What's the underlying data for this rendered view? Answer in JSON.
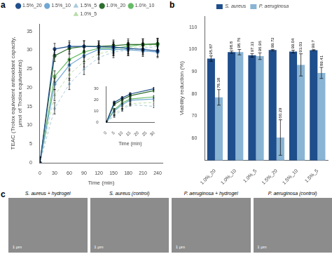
{
  "chart_data": [
    {
      "type": "line",
      "annotations": [
        "a"
      ],
      "x": [
        0,
        30,
        60,
        90,
        120,
        150,
        180,
        210,
        240
      ],
      "xlabel": "Time (min)",
      "ylabel": "TEAC (Trolox equivalent antioxidant capacity,\nμmol of Trolox equivalents)",
      "xlim": [
        0,
        250
      ],
      "xticks": [
        0,
        30,
        60,
        90,
        120,
        150,
        180,
        210,
        240
      ],
      "ylim": [
        0,
        37
      ],
      "yticks": [
        0,
        5,
        10,
        15,
        20,
        25,
        30,
        35
      ],
      "grid": false,
      "legend": "top",
      "series": [
        {
          "name": "1.5%_20",
          "color": "#1f4e8c",
          "marker": "circle",
          "line_style": "solid",
          "values": [
            0,
            30.3,
            31.0,
            31.0,
            30.9,
            30.8,
            30.5,
            30.2,
            29.8
          ],
          "errors": [
            1.5,
            1.5,
            1.5,
            1.5,
            1.5,
            1.5,
            1.5,
            1.5,
            1.5
          ]
        },
        {
          "name": "1.5%_10",
          "color": "#6fa8d4",
          "marker": "circle",
          "line_style": "solid",
          "values": [
            0,
            21.0,
            26.0,
            28.5,
            30.2,
            30.2,
            30.1,
            29.8,
            29.5
          ],
          "errors": [
            1.5,
            1.5,
            1.5,
            1.5,
            1.5,
            1.5,
            1.5,
            1.5,
            1.5
          ]
        },
        {
          "name": "1.5%_5",
          "color": "#aaccdd",
          "marker": "triangle",
          "line_style": "dashed",
          "values": [
            0,
            14.5,
            21.0,
            25.0,
            28.0,
            29.5,
            30.0,
            30.5,
            31.0
          ],
          "errors": [
            1.5,
            1.5,
            1.5,
            1.5,
            1.5,
            1.5,
            1.5,
            1.5,
            1.5
          ]
        },
        {
          "name": "1.0%_20",
          "color": "#2d6e2d",
          "marker": "circle",
          "line_style": "solid",
          "values": [
            0,
            28.5,
            30.5,
            31.0,
            31.0,
            31.2,
            31.5,
            31.5,
            31.7
          ],
          "errors": [
            1.5,
            1.5,
            1.5,
            1.5,
            1.5,
            1.5,
            1.5,
            1.5,
            1.5
          ]
        },
        {
          "name": "1.0%_10",
          "color": "#66bb66",
          "marker": "circle",
          "line_style": "solid",
          "values": [
            0,
            23.0,
            27.5,
            29.5,
            30.5,
            30.5,
            31.0,
            31.5,
            31.5
          ],
          "errors": [
            1.5,
            1.5,
            1.5,
            1.5,
            1.5,
            1.5,
            1.5,
            1.5,
            1.5
          ]
        },
        {
          "name": "1.0%_5",
          "color": "#bbddaa",
          "marker": "triangle",
          "line_style": "dashed",
          "values": [
            0,
            18.0,
            23.5,
            27.0,
            29.0,
            30.0,
            30.5,
            31.0,
            31.5
          ],
          "errors": [
            1.5,
            1.5,
            1.5,
            1.5,
            1.5,
            1.5,
            1.5,
            1.5,
            1.5
          ]
        }
      ],
      "inset": {
        "type": "line",
        "x": [
          0,
          5,
          10,
          15,
          30
        ],
        "xlabel": "Time (min)",
        "xlim": [
          0,
          30
        ],
        "xticks": [
          0,
          5,
          10,
          15,
          20,
          25,
          30
        ],
        "ylim": [
          0,
          32
        ],
        "yticks": [
          0,
          10,
          20,
          30
        ],
        "grid": false,
        "series": [
          {
            "color": "#1f4e8c",
            "marker": "circle",
            "line_style": "solid",
            "values": [
              0,
              18.0,
              22.0,
              25.5,
              30.3
            ],
            "errors": [
              1.2,
              1.2,
              1.2,
              1.2,
              1.2
            ]
          },
          {
            "color": "#6fa8d4",
            "marker": "circle",
            "line_style": "solid",
            "values": [
              0,
              10.5,
              16.0,
              20.0,
              21.0
            ],
            "errors": [
              1.2,
              1.2,
              1.2,
              1.2,
              1.2
            ]
          },
          {
            "color": "#aaccdd",
            "marker": "triangle",
            "line_style": "dashed",
            "values": [
              0,
              6.0,
              11.5,
              16.0,
              14.5
            ],
            "errors": [
              1.2,
              1.2,
              1.2,
              1.2,
              1.2
            ]
          },
          {
            "color": "#2d6e2d",
            "marker": "circle",
            "line_style": "solid",
            "values": [
              0,
              16.5,
              20.5,
              24.0,
              28.5
            ],
            "errors": [
              1.2,
              1.2,
              1.2,
              1.2,
              1.2
            ]
          },
          {
            "color": "#66bb66",
            "marker": "circle",
            "line_style": "solid",
            "values": [
              0,
              11.5,
              17.5,
              21.0,
              23.0
            ],
            "errors": [
              1.2,
              1.2,
              1.2,
              1.2,
              1.2
            ]
          },
          {
            "color": "#bbddaa",
            "marker": "triangle",
            "line_style": "dashed",
            "values": [
              0,
              7.5,
              13.0,
              17.0,
              18.0
            ],
            "errors": [
              1.2,
              1.2,
              1.2,
              1.2,
              1.2
            ]
          }
        ]
      }
    },
    {
      "type": "bar",
      "annotations": [
        "b"
      ],
      "categories": [
        "1.0%_20",
        "1.0%_10",
        "1.0%_5",
        "1.5%_20",
        "1.5%_10",
        "1.5%_5"
      ],
      "ylabel": "Viability reduction (%)",
      "ylim": [
        50,
        115
      ],
      "yticks": [
        60,
        70,
        80,
        90,
        100,
        110
      ],
      "grid": false,
      "legend": "top",
      "data_labels": true,
      "series": [
        {
          "name": "S. aureus",
          "color": "#1f4e8c",
          "values": [
            95.87,
            98.8,
            97.33,
            99.72,
            99.04,
            99.7
          ],
          "errors": [
            1.2,
            0.5,
            0.8,
            0.3,
            0.6,
            0.2
          ]
        },
        {
          "name": "P. aeruginosa",
          "color": "#8ab4d4",
          "values": [
            78.38,
            98.76,
            96.96,
            60.29,
            93.03,
            89.41
          ],
          "errors": [
            3.5,
            1.2,
            1.5,
            8.0,
            5.0,
            2.5
          ]
        }
      ]
    },
    {
      "type": "image",
      "title": "S. aureus + hydrogel",
      "color": "#8c8c8c",
      "annotations": [
        "c",
        "1 μm"
      ]
    },
    {
      "type": "image",
      "title": "S. aureus (control)",
      "color": "#8c8c8c",
      "annotations": [
        "1 μm"
      ]
    },
    {
      "type": "image",
      "title": "P. aeruginosa + hydrogel",
      "color": "#8c8c8c",
      "annotations": [
        "1 μm"
      ]
    },
    {
      "type": "image",
      "title": "P. aeruginosa (control)",
      "color": "#8c8c8c",
      "annotations": [
        "1 μm"
      ]
    }
  ]
}
